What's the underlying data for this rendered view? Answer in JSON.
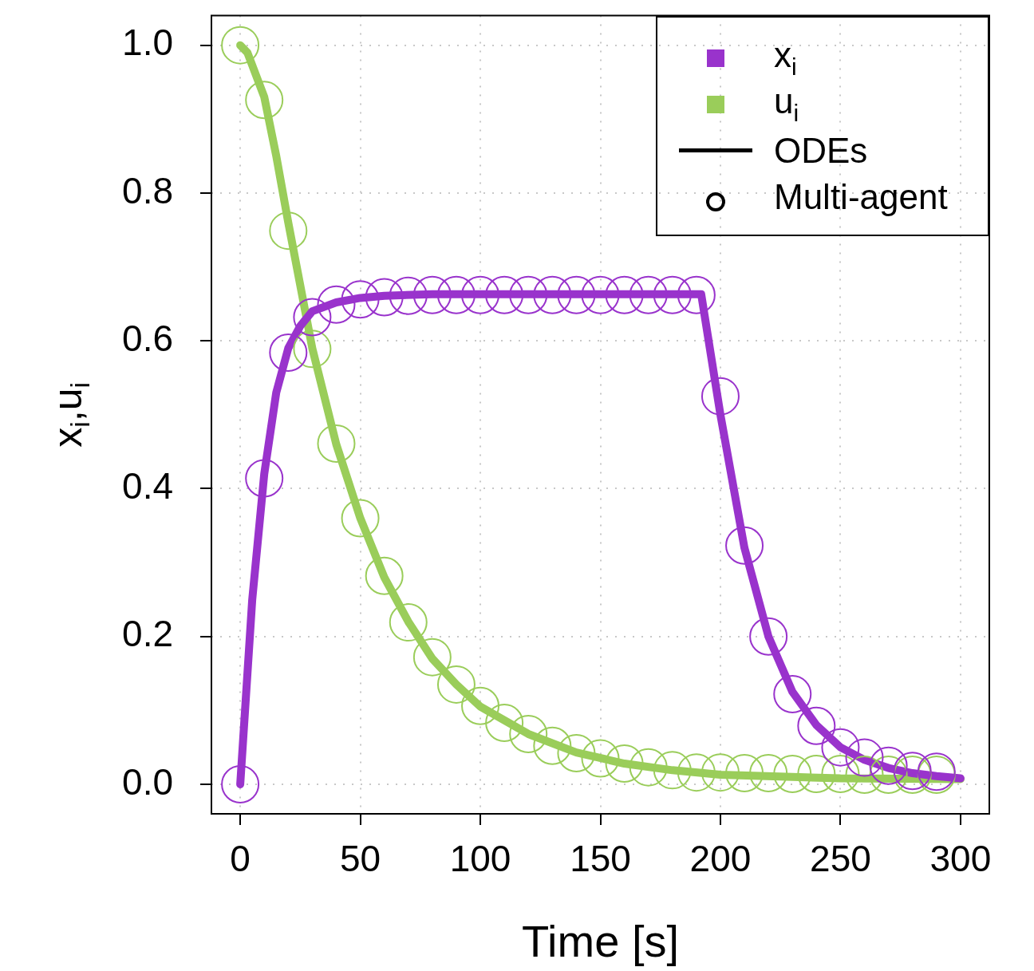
{
  "chart_data": {
    "type": "line",
    "xlabel": "Time [s]",
    "ylabel": "x$_{i}$,u$_{i}$",
    "xlim": [
      -12,
      312
    ],
    "ylim": [
      -0.04,
      1.04
    ],
    "xticks": [
      0,
      50,
      100,
      150,
      200,
      250,
      300
    ],
    "yticks": [
      {
        "value": 0,
        "label": "0.0"
      },
      0.2,
      0.4,
      0.6,
      0.8,
      {
        "value": 1,
        "label": "1.0"
      }
    ],
    "grid": true,
    "legend": "top right",
    "line_style": "solid",
    "annotations": [
      "ODEs",
      "Multi-agent"
    ],
    "series": [
      {
        "name": "x$_{i}$",
        "color": "#9933cc",
        "x": [
          0,
          2,
          5,
          10,
          15,
          20,
          25,
          30,
          40,
          50,
          60,
          80,
          120,
          192,
          200,
          210,
          220,
          230,
          240,
          250,
          260,
          270,
          280,
          290,
          300
        ],
        "values": [
          0,
          0.1,
          0.25,
          0.42,
          0.53,
          0.59,
          0.62,
          0.64,
          0.652,
          0.658,
          0.661,
          0.663,
          0.663,
          0.663,
          0.5,
          0.32,
          0.2,
          0.125,
          0.08,
          0.05,
          0.033,
          0.022,
          0.015,
          0.011,
          0.008
        ]
      },
      {
        "name": "u$_{i}$",
        "color": "#9acd5a",
        "x": [
          0,
          3,
          10,
          15,
          20,
          30,
          40,
          50,
          60,
          70,
          80,
          90,
          100,
          120,
          140,
          160,
          180,
          200,
          250,
          300
        ],
        "values": [
          1.0,
          0.99,
          0.93,
          0.85,
          0.76,
          0.59,
          0.46,
          0.36,
          0.28,
          0.22,
          0.17,
          0.135,
          0.105,
          0.068,
          0.043,
          0.028,
          0.019,
          0.013,
          0.008,
          0.007
        ]
      },
      {
        "type": "scatter",
        "marker": "circle",
        "color": "#9933cc",
        "x": [
          0,
          10,
          20,
          30,
          40,
          50,
          60,
          70,
          80,
          90,
          100,
          110,
          120,
          130,
          140,
          150,
          160,
          170,
          180,
          190,
          200,
          210,
          220,
          230,
          240,
          250,
          260,
          270,
          280,
          290
        ],
        "values": [
          0,
          0.414,
          0.584,
          0.632,
          0.649,
          0.656,
          0.659,
          0.661,
          0.662,
          0.662,
          0.662,
          0.662,
          0.662,
          0.662,
          0.662,
          0.662,
          0.662,
          0.662,
          0.662,
          0.662,
          0.525,
          0.323,
          0.2,
          0.122,
          0.079,
          0.05,
          0.036,
          0.025,
          0.018,
          0.017
        ]
      },
      {
        "type": "scatter",
        "marker": "circle",
        "color": "#9acd5a",
        "x": [
          0,
          10,
          20,
          30,
          40,
          50,
          60,
          70,
          80,
          90,
          100,
          110,
          120,
          130,
          140,
          150,
          160,
          170,
          180,
          190,
          200,
          210,
          220,
          230,
          240,
          250,
          260,
          270,
          280,
          290
        ],
        "values": [
          1.0,
          0.926,
          0.749,
          0.589,
          0.461,
          0.36,
          0.282,
          0.219,
          0.172,
          0.135,
          0.106,
          0.083,
          0.068,
          0.052,
          0.042,
          0.035,
          0.028,
          0.023,
          0.019,
          0.016,
          0.016,
          0.015,
          0.015,
          0.014,
          0.014,
          0.014,
          0.013,
          0.013,
          0.013,
          0.013
        ]
      }
    ]
  }
}
